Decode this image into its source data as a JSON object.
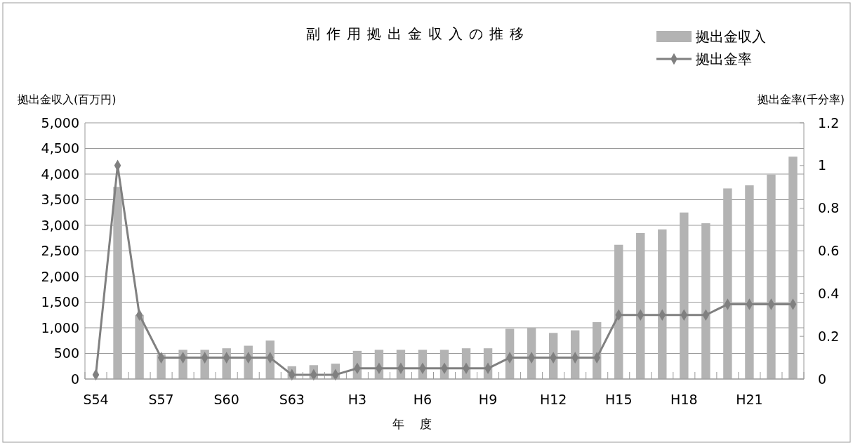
{
  "chart_data": {
    "type": "bar",
    "title": "副作用拠出金収入の推移",
    "xlabel": "年度",
    "ylabel": "拠出金収入(百万円)",
    "y2label": "拠出金率(千分率)",
    "categories": [
      "S54",
      null,
      null,
      "S57",
      null,
      null,
      "S60",
      null,
      null,
      "S63",
      null,
      null,
      "H3",
      null,
      null,
      "H6",
      null,
      null,
      "H9",
      null,
      null,
      "H12",
      null,
      null,
      "H15",
      null,
      null,
      "H18",
      null,
      null,
      "H21",
      null,
      null
    ],
    "series": [
      {
        "name": "拠出金収入",
        "color": "#b3b3b3",
        "values": [
          null,
          3750,
          1250,
          480,
          570,
          570,
          600,
          650,
          750,
          250,
          270,
          300,
          550,
          570,
          570,
          570,
          570,
          600,
          600,
          980,
          1000,
          900,
          950,
          1110,
          2620,
          2850,
          2920,
          3250,
          3040,
          3720,
          3780,
          3990,
          4340
        ]
      },
      {
        "name": "拠出金率",
        "type": "line",
        "axis": "y2",
        "color": "#808080",
        "marker": "diamond",
        "values": [
          0.02,
          1.0,
          0.3,
          0.1,
          0.1,
          0.1,
          0.1,
          0.1,
          0.1,
          0.02,
          0.02,
          0.02,
          0.05,
          0.05,
          0.05,
          0.05,
          0.05,
          0.05,
          0.05,
          0.1,
          0.1,
          0.1,
          0.1,
          0.1,
          0.3,
          0.3,
          0.3,
          0.3,
          0.3,
          0.35,
          0.35,
          0.35,
          0.35
        ]
      }
    ],
    "ylim": [
      0,
      5000
    ],
    "yticks": [
      {
        "value": 0,
        "label": "0"
      },
      {
        "value": 500,
        "label": "500"
      },
      {
        "value": 1000,
        "label": "1,000"
      },
      {
        "value": 1500,
        "label": "1,500"
      },
      {
        "value": 2000,
        "label": "2,000"
      },
      {
        "value": 2500,
        "label": "2,500"
      },
      {
        "value": 3000,
        "label": "3,000"
      },
      {
        "value": 3500,
        "label": "3,500"
      },
      {
        "value": 4000,
        "label": "4,000"
      },
      {
        "value": 4500,
        "label": "4,500"
      },
      {
        "value": 5000,
        "label": "5,000"
      }
    ],
    "y2lim": [
      0,
      1.2
    ],
    "y2ticks": [
      0,
      0.2,
      0.4,
      0.6,
      0.8,
      1,
      1.2
    ],
    "grid": "y",
    "legend": "top right"
  }
}
